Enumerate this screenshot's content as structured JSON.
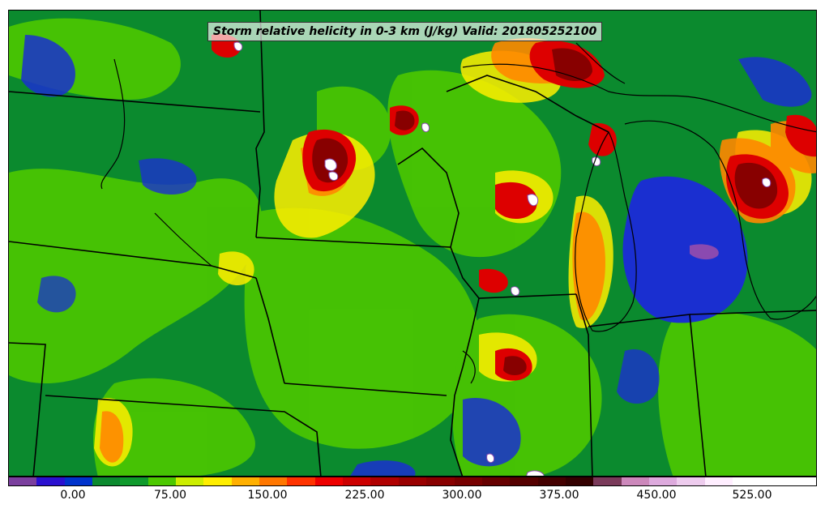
{
  "title": "Storm relative helicity in 0-3 km (J/kg) Valid: 201805252100",
  "colorbar": {
    "colors": [
      "#7b3f9e",
      "#2a10d0",
      "#0033cc",
      "#0b8a2e",
      "#0f9a2c",
      "#4cc800",
      "#ccee00",
      "#ffee00",
      "#ffb000",
      "#ff7700",
      "#ff3300",
      "#ee0000",
      "#cc0000",
      "#b00000",
      "#990000",
      "#880000",
      "#770000",
      "#660000",
      "#550000",
      "#440000",
      "#330000",
      "#7a3a5a",
      "#cc88bb",
      "#ddaadd",
      "#eeccee",
      "#ffeeff",
      "#ffffff",
      "#ffffff",
      "#ffffff"
    ],
    "tick_labels": [
      "0.00",
      "75.00",
      "150.00",
      "225.00",
      "300.00",
      "375.00",
      "450.00",
      "525.00"
    ]
  },
  "layers": {
    "background": "#0b8a2e",
    "low_helicity": "#1a2fd0",
    "mid_green": "#4cc800",
    "yellow": "#ffee00",
    "orange": "#ff8800",
    "red": "#dd0000",
    "dark_red": "#880000",
    "white": "#ffffff",
    "violet": "#8a4ab0"
  }
}
